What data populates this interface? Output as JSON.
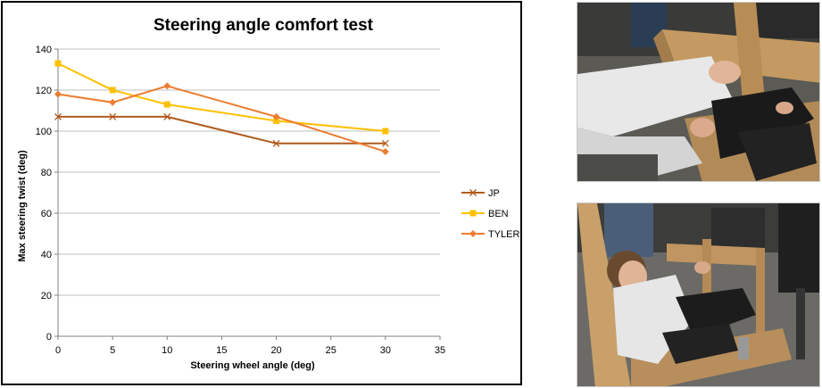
{
  "chart_data": {
    "type": "line",
    "title": "Steering angle comfort test",
    "xlabel": "Steering wheel angle (deg)",
    "ylabel": "Max steering twist (deg)",
    "xlim": [
      0,
      35
    ],
    "ylim": [
      0,
      140
    ],
    "xticks": [
      0,
      5,
      10,
      15,
      20,
      25,
      30,
      35
    ],
    "yticks": [
      0,
      20,
      40,
      60,
      80,
      100,
      120,
      140
    ],
    "grid": "horizontal",
    "legend_position": "right",
    "series": [
      {
        "name": "JP",
        "color": "#b05a1c",
        "marker": "x",
        "x": [
          0,
          5,
          10,
          20,
          30
        ],
        "y": [
          107,
          107,
          107,
          94,
          94
        ]
      },
      {
        "name": "BEN",
        "color": "#ffc000",
        "marker": "square",
        "x": [
          0,
          5,
          10,
          20,
          30
        ],
        "y": [
          133,
          120,
          113,
          105,
          100
        ]
      },
      {
        "name": "TYLER",
        "color": "#ed7d31",
        "marker": "diamond",
        "x": [
          0,
          5,
          10,
          20,
          30
        ],
        "y": [
          118,
          114,
          122,
          107,
          90
        ]
      }
    ]
  },
  "photos": {
    "top_icon": "photo-person-steering-wooden-rig-closeup",
    "bottom_icon": "photo-person-seated-in-wooden-rig"
  }
}
